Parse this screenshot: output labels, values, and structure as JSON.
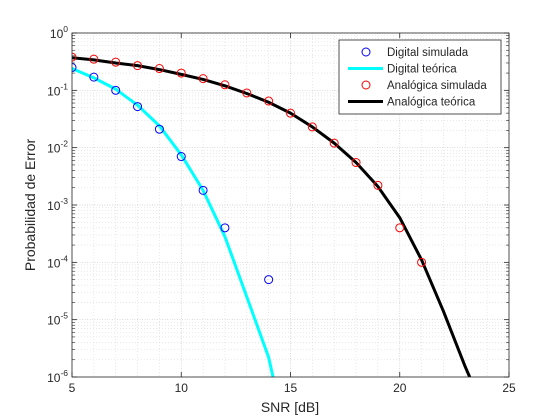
{
  "chart_data": {
    "type": "line",
    "title": "",
    "xlabel": "SNR [dB]",
    "ylabel": "Probabilidad de Error",
    "xlim": [
      5,
      25
    ],
    "ylim": [
      1e-06,
      1
    ],
    "yscale": "log",
    "grid": true,
    "minor_grid": true,
    "x_ticks": [
      5,
      10,
      15,
      20,
      25
    ],
    "x_tick_labels": [
      "5",
      "10",
      "15",
      "20",
      "25"
    ],
    "y_ticks": [
      1e-06,
      1e-05,
      0.0001,
      0.001,
      0.01,
      0.1,
      1
    ],
    "y_tick_labels": [
      {
        "base": "10",
        "exp": "-6"
      },
      {
        "base": "10",
        "exp": "-5"
      },
      {
        "base": "10",
        "exp": "-4"
      },
      {
        "base": "10",
        "exp": "-3"
      },
      {
        "base": "10",
        "exp": "-2"
      },
      {
        "base": "10",
        "exp": "-1"
      },
      {
        "base": "10",
        "exp": "0"
      }
    ],
    "legend_position": "top-right",
    "series": [
      {
        "name": "Digital simulada",
        "style": "markers",
        "marker": "circle",
        "color": "#0000ff",
        "x": [
          5,
          6,
          7,
          8,
          9,
          10,
          11,
          12,
          14
        ],
        "y": [
          0.25,
          0.17,
          0.1,
          0.052,
          0.021,
          0.007,
          0.0018,
          0.0004,
          5e-05
        ]
      },
      {
        "name": "Digital teórica",
        "style": "line",
        "color": "#00ffff",
        "x": [
          5,
          6,
          7,
          8,
          9,
          10,
          11,
          12,
          13,
          14,
          14.2
        ],
        "y": [
          0.24,
          0.165,
          0.105,
          0.055,
          0.024,
          0.0075,
          0.0018,
          0.00028,
          2.5e-05,
          2.2e-06,
          1e-06
        ]
      },
      {
        "name": "Analógica simulada",
        "style": "markers",
        "marker": "circle",
        "color": "#ff0000",
        "x": [
          5,
          6,
          7,
          8,
          9,
          10,
          11,
          12,
          13,
          14,
          15,
          16,
          17,
          18,
          19,
          20,
          21
        ],
        "y": [
          0.38,
          0.35,
          0.31,
          0.27,
          0.24,
          0.2,
          0.16,
          0.125,
          0.09,
          0.065,
          0.04,
          0.023,
          0.012,
          0.0055,
          0.0022,
          0.0004,
          0.0001
        ]
      },
      {
        "name": "Analógica teórica",
        "style": "line",
        "color": "#000000",
        "x": [
          5,
          6,
          7,
          8,
          9,
          10,
          11,
          12,
          13,
          14,
          15,
          16,
          17,
          18,
          19,
          20,
          21,
          22,
          23,
          23.2
        ],
        "y": [
          0.37,
          0.34,
          0.3,
          0.27,
          0.23,
          0.19,
          0.155,
          0.12,
          0.088,
          0.062,
          0.04,
          0.023,
          0.012,
          0.0055,
          0.0021,
          0.0006,
          0.00011,
          1.4e-05,
          1.5e-06,
          1e-06
        ]
      }
    ]
  }
}
